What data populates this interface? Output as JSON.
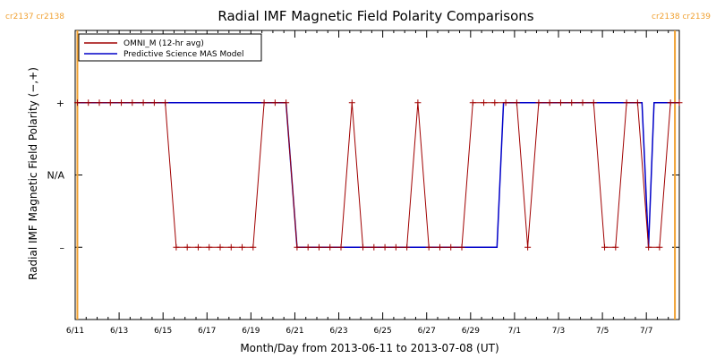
{
  "chart_data": {
    "type": "line",
    "title": "Radial IMF Magnetic Field Polarity Comparisons",
    "xlabel": "Month/Day from 2013-06-11 to 2013-07-08 (UT)",
    "ylabel": "Radial IMF Magnetic Field Polarity (−,+)",
    "x_range_days": [
      0,
      27.5
    ],
    "ylim": [
      -1.0,
      1.0
    ],
    "x_ticks": [
      {
        "label": "6/11",
        "day": 0
      },
      {
        "label": "6/13",
        "day": 2
      },
      {
        "label": "6/15",
        "day": 4
      },
      {
        "label": "6/17",
        "day": 6
      },
      {
        "label": "6/19",
        "day": 8
      },
      {
        "label": "6/21",
        "day": 10
      },
      {
        "label": "6/23",
        "day": 12
      },
      {
        "label": "6/25",
        "day": 14
      },
      {
        "label": "6/27",
        "day": 16
      },
      {
        "label": "6/29",
        "day": 18
      },
      {
        "label": "7/1",
        "day": 20
      },
      {
        "label": "7/3",
        "day": 22
      },
      {
        "label": "7/5",
        "day": 24
      },
      {
        "label": "7/7",
        "day": 26
      }
    ],
    "y_ticks": [
      {
        "label": "+",
        "value": 0.5
      },
      {
        "label": "N/A",
        "value": 0
      },
      {
        "label": "–",
        "value": -0.5
      }
    ],
    "carrington_markers": [
      {
        "day": 0.1,
        "label": "cr2137 cr2138",
        "side": "left"
      },
      {
        "day": 27.3,
        "label": "cr2138 cr2139",
        "side": "right"
      }
    ],
    "legend": {
      "position": "top-left"
    },
    "series": [
      {
        "name": "OMNI_M (12-hr avg)",
        "color": "#a00000",
        "markers": true,
        "points": [
          [
            0.1,
            0.5
          ],
          [
            0.6,
            0.5
          ],
          [
            1.1,
            0.5
          ],
          [
            1.6,
            0.5
          ],
          [
            2.1,
            0.5
          ],
          [
            2.6,
            0.5
          ],
          [
            3.1,
            0.5
          ],
          [
            3.6,
            0.5
          ],
          [
            4.1,
            0.5
          ],
          [
            4.6,
            -0.5
          ],
          [
            5.1,
            -0.5
          ],
          [
            5.6,
            -0.5
          ],
          [
            6.1,
            -0.5
          ],
          [
            6.6,
            -0.5
          ],
          [
            7.1,
            -0.5
          ],
          [
            7.6,
            -0.5
          ],
          [
            8.1,
            -0.5
          ],
          [
            8.6,
            0.5
          ],
          [
            9.1,
            0.5
          ],
          [
            9.6,
            0.5
          ],
          [
            10.1,
            -0.5
          ],
          [
            10.6,
            -0.5
          ],
          [
            11.1,
            -0.5
          ],
          [
            11.6,
            -0.5
          ],
          [
            12.1,
            -0.5
          ],
          [
            12.6,
            0.5
          ],
          [
            13.1,
            -0.5
          ],
          [
            13.6,
            -0.5
          ],
          [
            14.1,
            -0.5
          ],
          [
            14.6,
            -0.5
          ],
          [
            15.1,
            -0.5
          ],
          [
            15.6,
            0.5
          ],
          [
            16.1,
            -0.5
          ],
          [
            16.6,
            -0.5
          ],
          [
            17.1,
            -0.5
          ],
          [
            17.6,
            -0.5
          ],
          [
            18.1,
            0.5
          ],
          [
            18.6,
            0.5
          ],
          [
            19.1,
            0.5
          ],
          [
            19.6,
            0.5
          ],
          [
            20.1,
            0.5
          ],
          [
            20.6,
            -0.5
          ],
          [
            21.1,
            0.5
          ],
          [
            21.6,
            0.5
          ],
          [
            22.1,
            0.5
          ],
          [
            22.6,
            0.5
          ],
          [
            23.1,
            0.5
          ],
          [
            23.6,
            0.5
          ],
          [
            24.1,
            -0.5
          ],
          [
            24.6,
            -0.5
          ],
          [
            25.1,
            0.5
          ],
          [
            25.6,
            0.5
          ],
          [
            26.1,
            -0.5
          ],
          [
            26.6,
            -0.5
          ],
          [
            27.1,
            0.5
          ],
          [
            27.5,
            0.5
          ]
        ]
      },
      {
        "name": "Predictive Science MAS Model",
        "color": "#0000c8",
        "markers": false,
        "points": [
          [
            0.1,
            0.5
          ],
          [
            9.6,
            0.5
          ],
          [
            10.1,
            -0.5
          ],
          [
            19.2,
            -0.5
          ],
          [
            19.5,
            0.5
          ],
          [
            25.8,
            0.5
          ],
          [
            26.1,
            -0.5
          ],
          [
            26.35,
            0.5
          ],
          [
            27.5,
            0.5
          ]
        ]
      }
    ]
  }
}
